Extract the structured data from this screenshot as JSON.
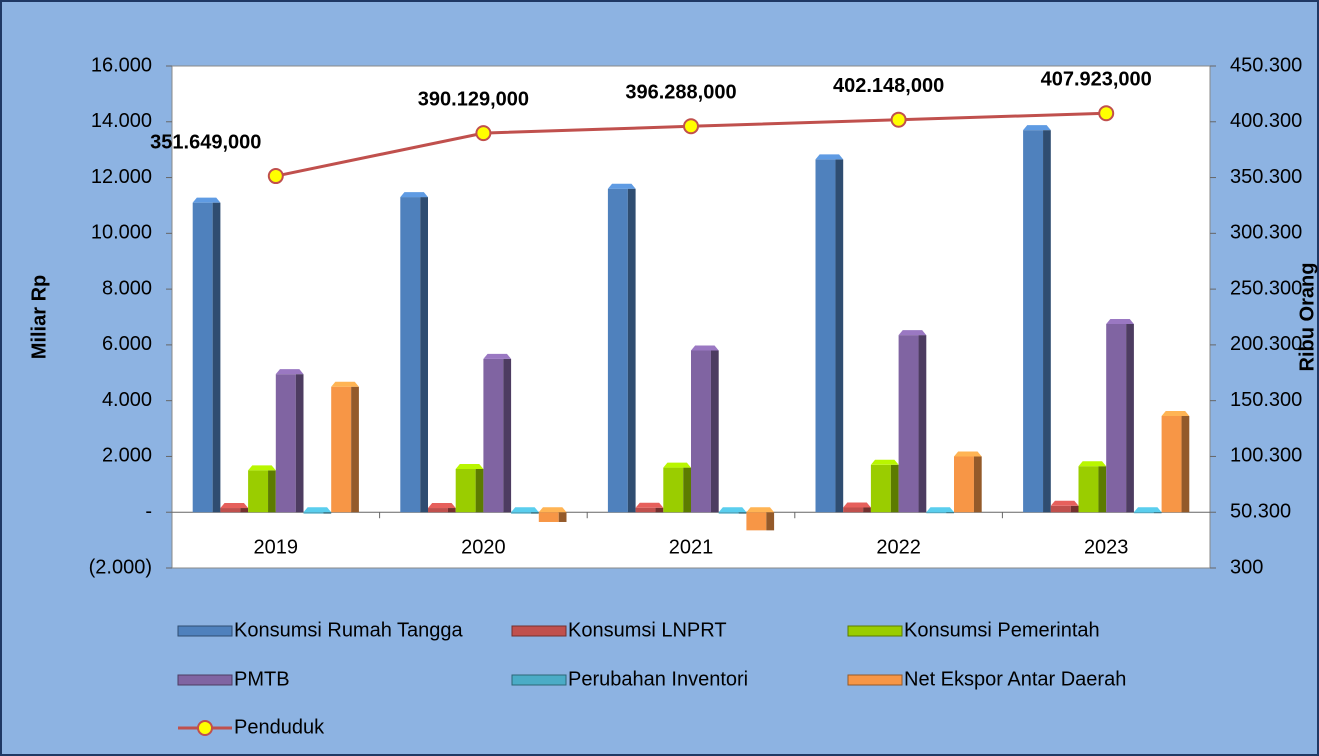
{
  "chart_data": {
    "type": "bar",
    "categories": [
      "2019",
      "2020",
      "2021",
      "2022",
      "2023"
    ],
    "ylabel": "Miliar Rp",
    "y2label": "Ribu Orang",
    "ylim": [
      -2000,
      16000
    ],
    "yticks": [
      {
        "value": -2000,
        "label": "(2.000)"
      },
      {
        "value": 0,
        "label": "-"
      },
      {
        "value": 2000,
        "label": "2.000"
      },
      {
        "value": 4000,
        "label": "4.000"
      },
      {
        "value": 6000,
        "label": "6.000"
      },
      {
        "value": 8000,
        "label": "8.000"
      },
      {
        "value": 10000,
        "label": "10.000"
      },
      {
        "value": 12000,
        "label": "12.000"
      },
      {
        "value": 14000,
        "label": "14.000"
      },
      {
        "value": 16000,
        "label": "16.000"
      }
    ],
    "y2lim": [
      300,
      450300
    ],
    "y2ticks": [
      {
        "value": 300,
        "label": "300"
      },
      {
        "value": 50300,
        "label": "50.300"
      },
      {
        "value": 100300,
        "label": "100.300"
      },
      {
        "value": 150300,
        "label": "150.300"
      },
      {
        "value": 200300,
        "label": "200.300"
      },
      {
        "value": 250300,
        "label": "250.300"
      },
      {
        "value": 300300,
        "label": "300.300"
      },
      {
        "value": 350300,
        "label": "350.300"
      },
      {
        "value": 400300,
        "label": "400.300"
      },
      {
        "value": 450300,
        "label": "450.300"
      }
    ],
    "series": [
      {
        "name": "Konsumsi Rumah Tangga",
        "color": "#4f81bd",
        "values": [
          11100,
          11300,
          11600,
          12650,
          13700
        ]
      },
      {
        "name": "Konsumsi LNPRT",
        "color": "#c0504d",
        "values": [
          150,
          150,
          160,
          170,
          230
        ]
      },
      {
        "name": "Konsumsi Pemerintah",
        "color": "#9acd00",
        "values": [
          1500,
          1550,
          1600,
          1700,
          1650
        ]
      },
      {
        "name": "PMTB",
        "color": "#8064a2",
        "values": [
          4950,
          5500,
          5800,
          6350,
          6750
        ]
      },
      {
        "name": "Perubahan Inventori",
        "color": "#4bacc6",
        "values": [
          -50,
          -50,
          -50,
          -30,
          -30
        ]
      },
      {
        "name": "Net Ekspor Antar Daerah",
        "color": "#f79646",
        "values": [
          4500,
          -350,
          -650,
          2000,
          3450
        ]
      },
      {
        "name": "Penduduk",
        "color": "#c0504d",
        "marker_color": "#ffff00",
        "type": "line",
        "axis": "y2",
        "values": [
          351649,
          390129,
          396288,
          402148,
          407923
        ],
        "value_labels": [
          "351.649,000",
          "390.129,000",
          "396.288,000",
          "402.148,000",
          "407.923,000"
        ]
      }
    ]
  }
}
